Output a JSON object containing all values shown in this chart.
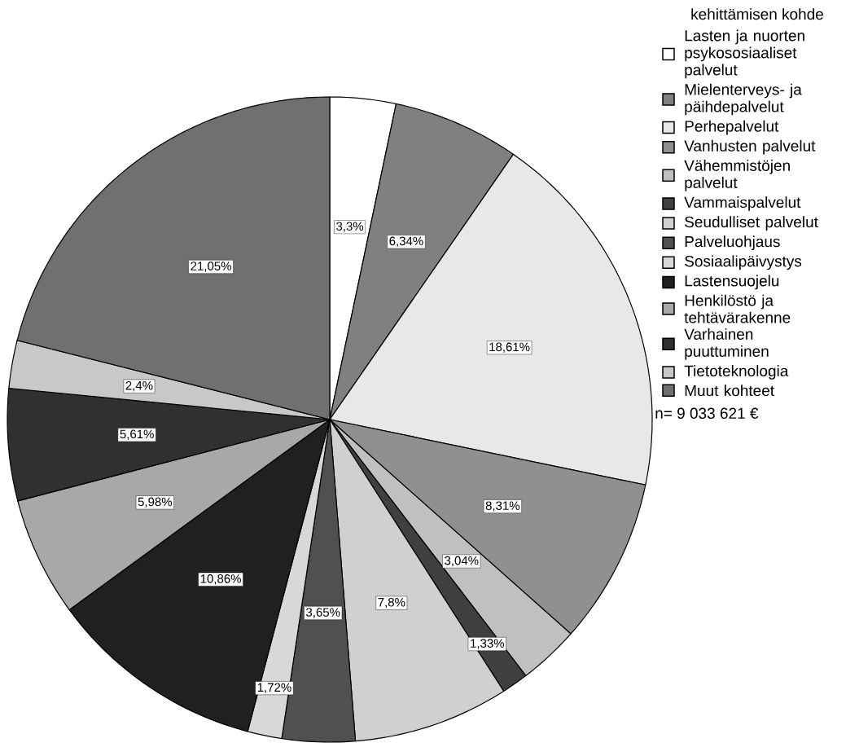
{
  "chart_data": {
    "type": "pie",
    "legend_title": "kehittämisen kohde",
    "categories": [
      "Lasten ja nuorten psykososiaaliset palvelut",
      "Mielenterveys- ja päihdepalvelut",
      "Perhepalvelut",
      "Vanhusten palvelut",
      "Vähemmistöjen palvelut",
      "Vammaispalvelut",
      "Seudulliset palvelut",
      "Palveluohjaus",
      "Sosiaalipäivystys",
      "Lastensuojelu",
      "Henkilöstö ja tehtävärakenne",
      "Varhainen puuttuminen",
      "Tietoteknologia",
      "Muut kohteet"
    ],
    "values": [
      3.3,
      6.34,
      18.61,
      8.31,
      3.04,
      1.33,
      7.8,
      3.65,
      1.72,
      10.86,
      5.98,
      5.61,
      2.4,
      21.05
    ],
    "value_labels": [
      "3,3%",
      "6,34%",
      "18,61%",
      "8,31%",
      "3,04%",
      "1,33%",
      "7,8%",
      "3,65%",
      "1,72%",
      "10,86%",
      "5,98%",
      "5,61%",
      "2,4%",
      "21,05%"
    ],
    "colors": [
      "#ffffff",
      "#808080",
      "#e8e8e8",
      "#909090",
      "#c0c0c0",
      "#404040",
      "#d0d0d0",
      "#505050",
      "#d8d8d8",
      "#202020",
      "#a8a8a8",
      "#303030",
      "#c8c8c8",
      "#707070"
    ],
    "legend": "right",
    "annotations": [
      "n= 9 033 621 €"
    ]
  }
}
